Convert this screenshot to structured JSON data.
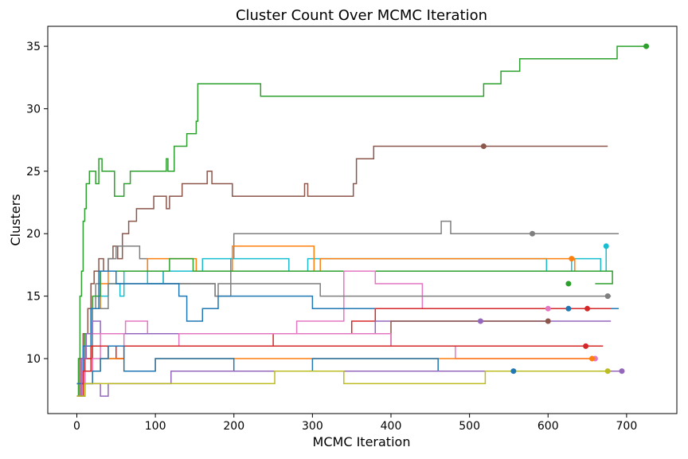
{
  "chart_data": {
    "type": "line",
    "title": "Cluster Count Over MCMC Iteration",
    "xlabel": "MCMC Iteration",
    "ylabel": "Clusters",
    "xlim": [
      -37,
      764
    ],
    "ylim": [
      5.6,
      36.6
    ],
    "xticks": [
      0,
      100,
      200,
      300,
      400,
      500,
      600,
      700
    ],
    "yticks": [
      10,
      15,
      20,
      25,
      30,
      35
    ],
    "grid": false,
    "legend": "none",
    "series": [
      {
        "color": "#2ca02c",
        "end": [
          725,
          35
        ],
        "points": [
          [
            0,
            7
          ],
          [
            2,
            10
          ],
          [
            4,
            15
          ],
          [
            6,
            17
          ],
          [
            8,
            21
          ],
          [
            10,
            22
          ],
          [
            12,
            24
          ],
          [
            16,
            25
          ],
          [
            22,
            25
          ],
          [
            24,
            24
          ],
          [
            28,
            26
          ],
          [
            32,
            25
          ],
          [
            46,
            25
          ],
          [
            48,
            23
          ],
          [
            58,
            23
          ],
          [
            60,
            24
          ],
          [
            66,
            24
          ],
          [
            68,
            25
          ],
          [
            112,
            25
          ],
          [
            114,
            26
          ],
          [
            116,
            25
          ],
          [
            122,
            25
          ],
          [
            124,
            27
          ],
          [
            138,
            27
          ],
          [
            140,
            28
          ],
          [
            150,
            28
          ],
          [
            152,
            29
          ],
          [
            154,
            32
          ],
          [
            232,
            32
          ],
          [
            234,
            31
          ],
          [
            516,
            31
          ],
          [
            518,
            32
          ],
          [
            538,
            32
          ],
          [
            540,
            33
          ],
          [
            562,
            33
          ],
          [
            564,
            34
          ],
          [
            686,
            34
          ],
          [
            688,
            35
          ],
          [
            725,
            35
          ]
        ]
      },
      {
        "color": "#8c564b",
        "end": [
          518,
          27
        ],
        "points": [
          [
            0,
            7
          ],
          [
            4,
            10
          ],
          [
            8,
            12
          ],
          [
            14,
            14
          ],
          [
            18,
            16
          ],
          [
            22,
            17
          ],
          [
            28,
            18
          ],
          [
            34,
            17
          ],
          [
            40,
            18
          ],
          [
            46,
            19
          ],
          [
            52,
            18
          ],
          [
            58,
            20
          ],
          [
            66,
            21
          ],
          [
            76,
            22
          ],
          [
            98,
            23
          ],
          [
            114,
            22
          ],
          [
            118,
            23
          ],
          [
            134,
            24
          ],
          [
            166,
            25
          ],
          [
            172,
            24
          ],
          [
            198,
            23
          ],
          [
            290,
            24
          ],
          [
            294,
            23
          ],
          [
            352,
            24
          ],
          [
            356,
            26
          ],
          [
            378,
            27
          ],
          [
            676,
            27
          ]
        ]
      },
      {
        "color": "#7f7f7f",
        "end": [
          580,
          20
        ],
        "points": [
          [
            0,
            7
          ],
          [
            6,
            10
          ],
          [
            12,
            12
          ],
          [
            18,
            14
          ],
          [
            24,
            16
          ],
          [
            30,
            17
          ],
          [
            40,
            18
          ],
          [
            50,
            19
          ],
          [
            80,
            18
          ],
          [
            90,
            17
          ],
          [
            110,
            16
          ],
          [
            176,
            15
          ],
          [
            196,
            18
          ],
          [
            200,
            20
          ],
          [
            462,
            20
          ],
          [
            464,
            21
          ],
          [
            474,
            21
          ],
          [
            476,
            20
          ],
          [
            690,
            20
          ]
        ]
      },
      {
        "color": "#17becf",
        "end": [
          674,
          19
        ],
        "points": [
          [
            0,
            8
          ],
          [
            10,
            11
          ],
          [
            20,
            14
          ],
          [
            30,
            15
          ],
          [
            40,
            16
          ],
          [
            55,
            15
          ],
          [
            60,
            17
          ],
          [
            90,
            16
          ],
          [
            110,
            17
          ],
          [
            160,
            18
          ],
          [
            268,
            18
          ],
          [
            270,
            17
          ],
          [
            294,
            18
          ],
          [
            596,
            18
          ],
          [
            598,
            17
          ],
          [
            630,
            18
          ],
          [
            665,
            18
          ],
          [
            667,
            17
          ],
          [
            674,
            19
          ]
        ]
      },
      {
        "color": "#ff7f0e",
        "end": [
          630,
          18
        ],
        "points": [
          [
            0,
            8
          ],
          [
            10,
            12
          ],
          [
            20,
            14
          ],
          [
            30,
            16
          ],
          [
            40,
            17
          ],
          [
            80,
            17
          ],
          [
            90,
            18
          ],
          [
            150,
            18
          ],
          [
            152,
            17
          ],
          [
            198,
            19
          ],
          [
            298,
            19
          ],
          [
            302,
            17
          ],
          [
            310,
            18
          ],
          [
            632,
            18
          ],
          [
            634,
            17
          ],
          [
            680,
            17
          ]
        ]
      },
      {
        "color": "#2ca02c",
        "end": [
          626,
          16
        ],
        "points": [
          [
            0,
            8
          ],
          [
            10,
            12
          ],
          [
            20,
            15
          ],
          [
            30,
            17
          ],
          [
            110,
            17
          ],
          [
            118,
            18
          ],
          [
            138,
            18
          ],
          [
            148,
            17
          ],
          [
            220,
            17
          ],
          [
            680,
            17
          ],
          [
            682,
            16
          ],
          [
            660,
            16
          ]
        ]
      },
      {
        "color": "#e377c2",
        "end": [
          600,
          14
        ],
        "points": [
          [
            0,
            8
          ],
          [
            10,
            10
          ],
          [
            20,
            12
          ],
          [
            60,
            12
          ],
          [
            62,
            13
          ],
          [
            80,
            13
          ],
          [
            90,
            12
          ],
          [
            120,
            12
          ],
          [
            240,
            12
          ],
          [
            280,
            13
          ],
          [
            300,
            13
          ],
          [
            340,
            17
          ],
          [
            380,
            16
          ],
          [
            440,
            14
          ],
          [
            660,
            14
          ]
        ]
      },
      {
        "color": "#7f7f7f",
        "end": [
          676,
          15
        ],
        "points": [
          [
            0,
            8
          ],
          [
            10,
            11
          ],
          [
            20,
            14
          ],
          [
            40,
            16
          ],
          [
            170,
            16
          ],
          [
            176,
            15
          ],
          [
            180,
            16
          ],
          [
            250,
            16
          ],
          [
            310,
            15
          ],
          [
            560,
            15
          ],
          [
            680,
            15
          ]
        ]
      },
      {
        "color": "#1f77b4",
        "end": [
          626,
          14
        ],
        "points": [
          [
            0,
            8
          ],
          [
            8,
            11
          ],
          [
            18,
            14
          ],
          [
            28,
            17
          ],
          [
            50,
            16
          ],
          [
            130,
            15
          ],
          [
            140,
            13
          ],
          [
            160,
            14
          ],
          [
            180,
            15
          ],
          [
            260,
            15
          ],
          [
            300,
            14
          ],
          [
            690,
            14
          ]
        ]
      },
      {
        "color": "#d62728",
        "end": [
          650,
          14
        ],
        "points": [
          [
            0,
            7
          ],
          [
            10,
            10
          ],
          [
            20,
            11
          ],
          [
            120,
            11
          ],
          [
            250,
            12
          ],
          [
            350,
            13
          ],
          [
            380,
            14
          ],
          [
            680,
            14
          ]
        ]
      },
      {
        "color": "#9467bd",
        "end": [
          514,
          13
        ],
        "points": [
          [
            0,
            7
          ],
          [
            6,
            10
          ],
          [
            12,
            12
          ],
          [
            20,
            13
          ],
          [
            30,
            12
          ],
          [
            200,
            12
          ],
          [
            300,
            12
          ],
          [
            380,
            13
          ],
          [
            680,
            13
          ]
        ]
      },
      {
        "color": "#8c564b",
        "end": [
          600,
          13
        ],
        "points": [
          [
            0,
            7
          ],
          [
            10,
            9
          ],
          [
            20,
            11
          ],
          [
            40,
            10
          ],
          [
            60,
            11
          ],
          [
            200,
            11
          ],
          [
            400,
            13
          ],
          [
            600,
            13
          ]
        ]
      },
      {
        "color": "#e377c2",
        "end": [
          660,
          10
        ],
        "points": [
          [
            0,
            7
          ],
          [
            10,
            9
          ],
          [
            20,
            10
          ],
          [
            30,
            12
          ],
          [
            60,
            11
          ],
          [
            100,
            11
          ],
          [
            130,
            12
          ],
          [
            400,
            11
          ],
          [
            480,
            11
          ],
          [
            482,
            10
          ],
          [
            660,
            10
          ]
        ]
      },
      {
        "color": "#d62728",
        "end": [
          648,
          11
        ],
        "points": [
          [
            0,
            7
          ],
          [
            8,
            9
          ],
          [
            18,
            11
          ],
          [
            50,
            10
          ],
          [
            60,
            11
          ],
          [
            650,
            11
          ],
          [
            670,
            11
          ]
        ]
      },
      {
        "color": "#ff7f0e",
        "end": [
          656,
          10
        ],
        "points": [
          [
            0,
            7
          ],
          [
            10,
            8
          ],
          [
            20,
            9
          ],
          [
            30,
            10
          ],
          [
            60,
            9
          ],
          [
            100,
            10
          ],
          [
            500,
            10
          ],
          [
            660,
            10
          ]
        ]
      },
      {
        "color": "#1f77b4",
        "end": [
          556,
          9
        ],
        "points": [
          [
            0,
            7
          ],
          [
            10,
            8
          ],
          [
            20,
            9
          ],
          [
            30,
            10
          ],
          [
            40,
            11
          ],
          [
            60,
            9
          ],
          [
            100,
            10
          ],
          [
            200,
            9
          ],
          [
            300,
            10
          ],
          [
            400,
            10
          ],
          [
            460,
            9
          ],
          [
            560,
            9
          ]
        ]
      },
      {
        "color": "#9467bd",
        "end": [
          694,
          9
        ],
        "points": [
          [
            0,
            7
          ],
          [
            10,
            8
          ],
          [
            30,
            7
          ],
          [
            40,
            8
          ],
          [
            120,
            9
          ],
          [
            300,
            9
          ],
          [
            694,
            9
          ]
        ]
      },
      {
        "color": "#bcbd22",
        "end": [
          676,
          9
        ],
        "points": [
          [
            0,
            7
          ],
          [
            10,
            8
          ],
          [
            250,
            8
          ],
          [
            252,
            9
          ],
          [
            320,
            9
          ],
          [
            340,
            8
          ],
          [
            500,
            8
          ],
          [
            520,
            9
          ],
          [
            676,
            9
          ]
        ]
      }
    ]
  }
}
